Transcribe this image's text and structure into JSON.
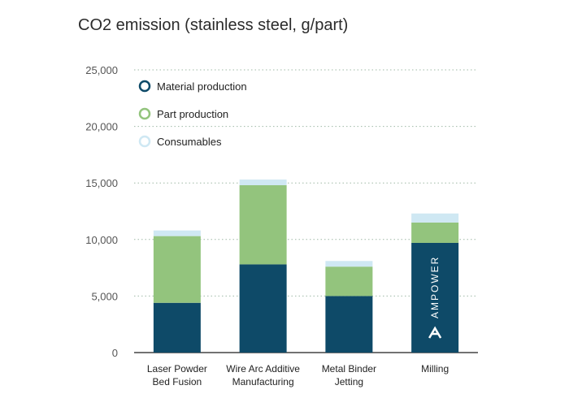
{
  "chart_data": {
    "type": "bar",
    "stacked": true,
    "title": "CO2 emission (stainless steel, g/part)",
    "xlabel": "",
    "ylabel": "",
    "ylim": [
      0,
      25000
    ],
    "yticks": [
      "0",
      "5,000",
      "10,000",
      "15,000",
      "20,000",
      "25,000"
    ],
    "grid": true,
    "legend_placement": "top-left",
    "categories": [
      [
        "Laser Powder",
        "Bed Fusion"
      ],
      [
        "Wire Arc Additive",
        "Manufacturing"
      ],
      [
        "Metal Binder",
        "Jetting"
      ],
      [
        "Milling"
      ]
    ],
    "series": [
      {
        "name": "Material production",
        "values": [
          4400,
          7800,
          5000,
          9700
        ],
        "color": "#0e4a68"
      },
      {
        "name": "Part production",
        "values": [
          5900,
          7000,
          2600,
          1800
        ],
        "color": "#93c47d"
      },
      {
        "name": "Consumables",
        "values": [
          500,
          500,
          500,
          800
        ],
        "color": "#cfe8f3"
      }
    ]
  },
  "watermark": "AMPOWER"
}
